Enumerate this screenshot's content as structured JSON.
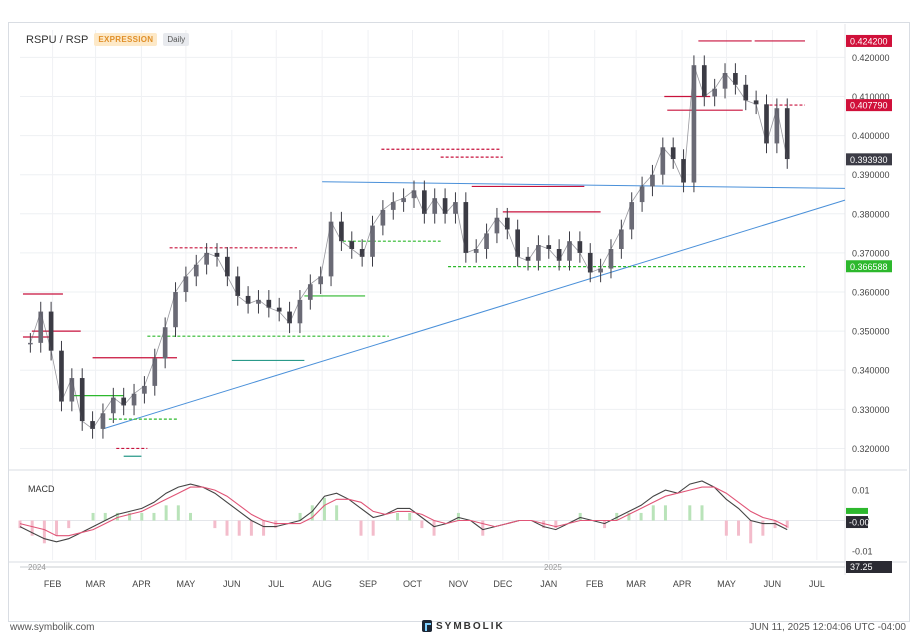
{
  "header": {
    "symbol": "RSPU / RSP",
    "mode_tag": "EXPRESSION",
    "interval_tag": "Daily"
  },
  "macd_panel": {
    "title": "MACD",
    "ticks": [
      "0.01",
      "0.00",
      "-0.01"
    ],
    "current_badge": "-0.00"
  },
  "timeline": {
    "years": [
      "2024",
      "2025"
    ],
    "badge": "37.25"
  },
  "footer": {
    "website": "www.symbolik.com",
    "brand": "SYMBOLIK",
    "timestamp": "JUN 11, 2025 12:04:06 UTC -04:00"
  },
  "colors": {
    "up": "#55555f",
    "down": "#55555f",
    "trend": "#4a90d9",
    "resistance": "#c8123c",
    "support": "#2db82d",
    "badge_red": "#d0103a",
    "badge_green": "#2db82d",
    "badge_gray": "#3c3c46",
    "macd_line": "#444444",
    "signal_line": "#e05577"
  },
  "chart_data": {
    "type": "line",
    "title": "RSPU / RSP",
    "xlabel": "",
    "ylabel": "",
    "ylim": [
      0.315,
      0.427
    ],
    "y_ticks": [
      "0.420000",
      "0.410000",
      "0.400000",
      "0.390000",
      "0.380000",
      "0.370000",
      "0.360000",
      "0.350000",
      "0.340000",
      "0.330000",
      "0.320000"
    ],
    "y_tick_values": [
      0.42,
      0.41,
      0.4,
      0.39,
      0.38,
      0.37,
      0.36,
      0.35,
      0.34,
      0.33,
      0.32
    ],
    "x_tick_labels": [
      "FEB",
      "MAR",
      "APR",
      "MAY",
      "JUN",
      "JUL",
      "AUG",
      "SEP",
      "OCT",
      "NOV",
      "DEC",
      "JAN",
      "FEB",
      "MAR",
      "APR",
      "MAY",
      "JUN",
      "JUL"
    ],
    "price_badges": [
      {
        "label": "0.424200",
        "value": 0.4242,
        "color": "#d0103a"
      },
      {
        "label": "0.407790",
        "value": 0.40779,
        "color": "#d0103a"
      },
      {
        "label": "0.393930",
        "value": 0.39393,
        "color": "#3c3c46"
      },
      {
        "label": "0.366588",
        "value": 0.366588,
        "color": "#2db82d"
      }
    ],
    "series": [
      {
        "x": [
          "2024-01-17",
          "2024-01-24",
          "2024-01-31",
          "2024-02-07",
          "2024-02-14",
          "2024-02-21",
          "2024-02-28",
          "2024-03-06",
          "2024-03-13",
          "2024-03-20",
          "2024-03-27",
          "2024-04-03",
          "2024-04-10",
          "2024-04-17",
          "2024-04-24",
          "2024-05-01",
          "2024-05-08",
          "2024-05-15",
          "2024-05-22",
          "2024-05-29",
          "2024-06-05",
          "2024-06-12",
          "2024-06-19",
          "2024-06-26",
          "2024-07-03",
          "2024-07-10",
          "2024-07-17",
          "2024-07-24",
          "2024-07-31",
          "2024-08-07",
          "2024-08-14",
          "2024-08-21",
          "2024-08-28",
          "2024-09-04",
          "2024-09-11",
          "2024-09-18",
          "2024-09-25",
          "2024-10-02",
          "2024-10-09",
          "2024-10-16",
          "2024-10-23",
          "2024-10-30",
          "2024-11-06",
          "2024-11-13",
          "2024-11-20",
          "2024-11-27",
          "2024-12-04",
          "2024-12-11",
          "2024-12-18",
          "2024-12-25",
          "2025-01-01",
          "2025-01-08",
          "2025-01-15",
          "2025-01-22",
          "2025-01-29",
          "2025-02-05",
          "2025-02-12",
          "2025-02-19",
          "2025-02-26",
          "2025-03-05",
          "2025-03-12",
          "2025-03-19",
          "2025-03-26",
          "2025-04-02",
          "2025-04-09",
          "2025-04-16",
          "2025-04-23",
          "2025-04-30",
          "2025-05-07",
          "2025-05-14",
          "2025-05-21",
          "2025-05-28",
          "2025-06-04",
          "2025-06-11"
        ],
        "values": [
          0.347,
          0.355,
          0.345,
          0.332,
          0.338,
          0.327,
          0.325,
          0.329,
          0.333,
          0.331,
          0.334,
          0.336,
          0.343,
          0.351,
          0.36,
          0.364,
          0.367,
          0.37,
          0.369,
          0.364,
          0.359,
          0.357,
          0.358,
          0.356,
          0.355,
          0.352,
          0.358,
          0.362,
          0.364,
          0.378,
          0.373,
          0.371,
          0.369,
          0.377,
          0.381,
          0.383,
          0.384,
          0.386,
          0.38,
          0.384,
          0.38,
          0.383,
          0.37,
          0.371,
          0.375,
          0.379,
          0.376,
          0.369,
          0.368,
          0.372,
          0.371,
          0.368,
          0.373,
          0.37,
          0.365,
          0.366,
          0.371,
          0.376,
          0.383,
          0.387,
          0.39,
          0.397,
          0.394,
          0.388,
          0.418,
          0.41,
          0.412,
          0.416,
          0.413,
          0.409,
          0.408,
          0.398,
          0.407,
          0.394
        ]
      }
    ],
    "macd": {
      "ylim": [
        -0.013,
        0.014
      ],
      "macd": [
        -0.002,
        -0.004,
        -0.006,
        -0.007,
        -0.006,
        -0.004,
        -0.002,
        0.0,
        0.002,
        0.003,
        0.004,
        0.006,
        0.009,
        0.011,
        0.012,
        0.011,
        0.009,
        0.006,
        0.003,
        0.0,
        -0.002,
        -0.002,
        -0.001,
        0.0,
        0.003,
        0.008,
        0.009,
        0.007,
        0.004,
        0.001,
        0.002,
        0.004,
        0.004,
        0.001,
        -0.002,
        -0.001,
        0.001,
        0.0,
        -0.003,
        -0.002,
        -0.001,
        0.0,
        0.0,
        -0.002,
        -0.003,
        -0.001,
        0.001,
        0.0,
        -0.001,
        0.001,
        0.003,
        0.005,
        0.008,
        0.01,
        0.009,
        0.012,
        0.013,
        0.011,
        0.007,
        0.004,
        0.0,
        -0.001,
        -0.001,
        -0.003
      ],
      "signal": [
        -0.001,
        -0.002,
        -0.003,
        -0.005,
        -0.005,
        -0.004,
        -0.003,
        -0.001,
        0.001,
        0.002,
        0.003,
        0.005,
        0.007,
        0.009,
        0.011,
        0.011,
        0.01,
        0.008,
        0.005,
        0.002,
        0.0,
        -0.001,
        -0.001,
        -0.001,
        0.001,
        0.005,
        0.007,
        0.007,
        0.006,
        0.003,
        0.002,
        0.003,
        0.003,
        0.002,
        0.0,
        -0.001,
        0.0,
        0.0,
        -0.001,
        -0.002,
        -0.001,
        0.0,
        0.0,
        -0.001,
        -0.002,
        -0.001,
        0.0,
        0.0,
        0.0,
        0.0,
        0.002,
        0.004,
        0.006,
        0.008,
        0.009,
        0.01,
        0.011,
        0.011,
        0.009,
        0.006,
        0.003,
        0.001,
        0.0,
        -0.002
      ]
    }
  }
}
